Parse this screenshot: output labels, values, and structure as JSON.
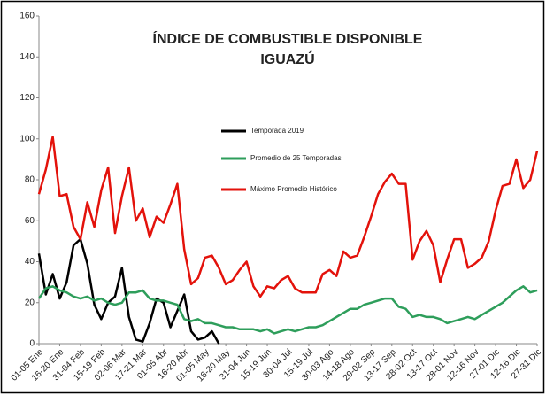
{
  "chart_data": {
    "type": "line",
    "title": "ÍNDICE DE COMBUSTIBLE DISPONIBLE",
    "subtitle": "IGUAZÚ",
    "categories": [
      "01-05 Ene",
      null,
      null,
      "16-20 Ene",
      null,
      null,
      "31-04 Feb",
      null,
      null,
      "15-19 Feb",
      null,
      null,
      "02-06 Mar",
      null,
      null,
      "17-21 Mar",
      null,
      null,
      "01-05 Abr",
      null,
      null,
      "16-20 Abr",
      null,
      null,
      "01-05 May",
      null,
      null,
      "16-20 May",
      null,
      null,
      "31-04 Jun",
      null,
      null,
      "15-19 Jun",
      null,
      null,
      "30-04 Jul",
      null,
      null,
      "15-19 Jul",
      null,
      null,
      "30-03 Ago",
      null,
      null,
      "14-18 Ago",
      null,
      null,
      "29-02 Sep",
      null,
      null,
      "13-17 Sep",
      null,
      null,
      "28-02 Oct",
      null,
      null,
      "13-17 Oct",
      null,
      null,
      "28-01 Nov",
      null,
      null,
      "12-16 Nov",
      null,
      null,
      "27-01 Dic",
      null,
      null,
      "12-16 Dic",
      null,
      null,
      "27-31 Dic"
    ],
    "series": [
      {
        "name": "Temporada 2019",
        "color": "#000000",
        "values": [
          44,
          24,
          34,
          22,
          30,
          48,
          51,
          39,
          19,
          12,
          20,
          23,
          37,
          13,
          2,
          1,
          10,
          22,
          20,
          8,
          16,
          24,
          6,
          2,
          3,
          6,
          0,
          null,
          null,
          null,
          null,
          null,
          null,
          null,
          null,
          null,
          null,
          null,
          null,
          null,
          null,
          null,
          null,
          null,
          null,
          null,
          null,
          null,
          null,
          null,
          null,
          null,
          null,
          null,
          null,
          null,
          null,
          null,
          null,
          null,
          null,
          null,
          null,
          null,
          null,
          null,
          null,
          null,
          null,
          null,
          null,
          null,
          null
        ]
      },
      {
        "name": "Promedio de 25 Temporadas",
        "color": "#2e9e5b",
        "values": [
          22,
          27,
          28,
          26,
          25,
          23,
          22,
          23,
          21,
          22,
          20,
          19,
          20,
          25,
          25,
          26,
          22,
          21,
          21,
          20,
          19,
          12,
          11,
          12,
          10,
          10,
          9,
          8,
          8,
          7,
          7,
          7,
          6,
          7,
          5,
          6,
          7,
          6,
          7,
          8,
          8,
          9,
          11,
          13,
          15,
          17,
          17,
          19,
          20,
          21,
          22,
          22,
          18,
          17,
          13,
          14,
          13,
          13,
          12,
          10,
          11,
          12,
          13,
          12,
          14,
          16,
          18,
          20,
          23,
          26,
          28,
          25,
          26
        ]
      },
      {
        "name": "Máximo Promedio Histórico",
        "color": "#e3120b",
        "values": [
          73,
          85,
          101,
          72,
          73,
          57,
          51,
          69,
          57,
          75,
          86,
          54,
          72,
          86,
          60,
          66,
          52,
          62,
          59,
          68,
          78,
          46,
          29,
          32,
          42,
          43,
          37,
          29,
          31,
          36,
          40,
          28,
          23,
          28,
          27,
          31,
          33,
          27,
          25,
          25,
          25,
          34,
          36,
          33,
          45,
          42,
          43,
          52,
          62,
          73,
          79,
          83,
          78,
          78,
          41,
          50,
          55,
          48,
          30,
          41,
          51,
          51,
          37,
          39,
          42,
          50,
          65,
          77,
          78,
          90,
          76,
          80,
          94
        ]
      }
    ],
    "ylim": [
      0,
      160
    ],
    "yticks": [
      0,
      20,
      40,
      60,
      80,
      100,
      120,
      140,
      160
    ],
    "grid": false
  }
}
